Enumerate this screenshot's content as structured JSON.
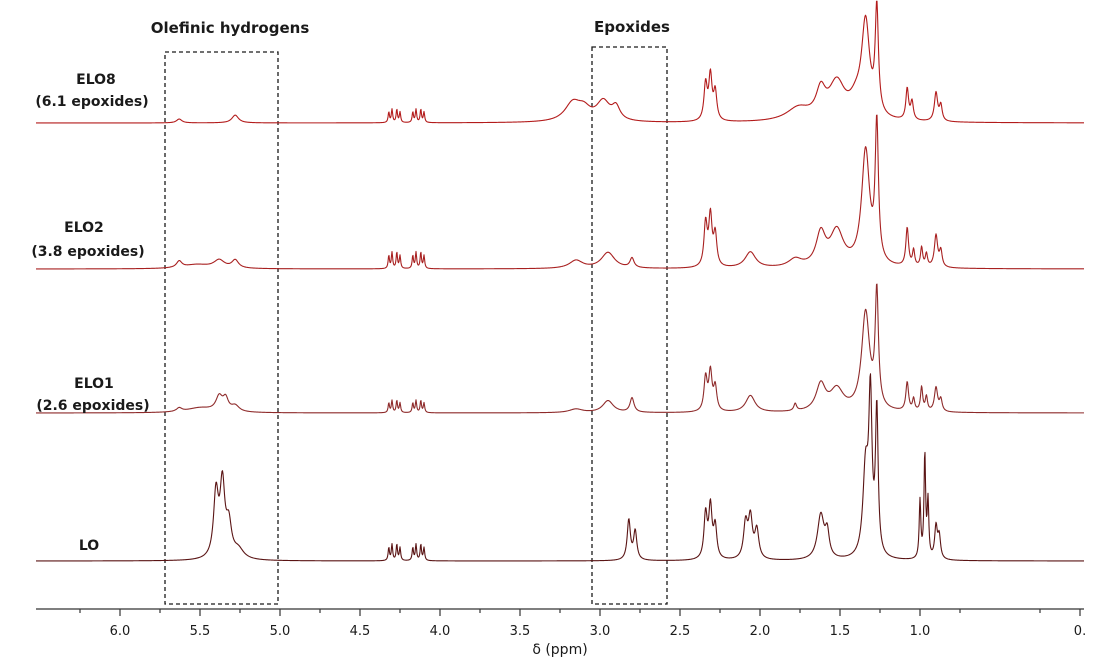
{
  "chart_data": {
    "type": "line",
    "title": "",
    "xlabel": "δ (ppm)",
    "ylabel": "",
    "x_reversed": true,
    "xlim": [
      6.45,
      0.0
    ],
    "x_ticks": [
      {
        "value": 6.0,
        "label": "6.0"
      },
      {
        "value": 5.5,
        "label": "5.5"
      },
      {
        "value": 5.0,
        "label": "5.0"
      },
      {
        "value": 4.5,
        "label": "4.5"
      },
      {
        "value": 4.0,
        "label": "4.0"
      },
      {
        "value": 3.5,
        "label": "3.5"
      },
      {
        "value": 3.0,
        "label": "3.0"
      },
      {
        "value": 2.5,
        "label": "2.5"
      },
      {
        "value": 2.0,
        "label": "2.0"
      },
      {
        "value": 1.5,
        "label": "1.5"
      },
      {
        "value": 1.0,
        "label": "1.0"
      },
      {
        "value": 0.0,
        "label": "0."
      }
    ],
    "grid": false,
    "annotations": [
      {
        "label": "Olefinic hydrogens",
        "x_range": [
          5.75,
          5.1
        ]
      },
      {
        "label": "Epoxides",
        "x_range": [
          3.28,
          2.86
        ]
      }
    ],
    "series": [
      {
        "label_line1": "ELO8",
        "label_line2": "(6.1 epoxides)",
        "color": "#b31b1b",
        "peaks": [
          [
            5.63,
            0.03,
            0.02
          ],
          [
            5.28,
            0.06,
            0.025
          ],
          [
            4.32,
            0.08,
            0.005
          ],
          [
            4.3,
            0.1,
            0.005
          ],
          [
            4.27,
            0.1,
            0.005
          ],
          [
            4.25,
            0.08,
            0.005
          ],
          [
            4.17,
            0.08,
            0.005
          ],
          [
            4.15,
            0.1,
            0.005
          ],
          [
            4.12,
            0.1,
            0.005
          ],
          [
            4.1,
            0.08,
            0.005
          ],
          [
            3.17,
            0.14,
            0.06
          ],
          [
            3.1,
            0.08,
            0.05
          ],
          [
            2.98,
            0.15,
            0.05
          ],
          [
            2.9,
            0.1,
            0.03
          ],
          [
            2.34,
            0.28,
            0.012
          ],
          [
            2.31,
            0.34,
            0.012
          ],
          [
            2.28,
            0.22,
            0.012
          ],
          [
            1.76,
            0.1,
            0.09
          ],
          [
            1.62,
            0.2,
            0.035
          ],
          [
            1.52,
            0.28,
            0.06
          ],
          [
            1.34,
            0.72,
            0.03
          ],
          [
            1.27,
            0.8,
            0.012
          ],
          [
            1.4,
            0.12,
            0.05
          ],
          [
            1.08,
            0.24,
            0.01
          ],
          [
            1.05,
            0.14,
            0.01
          ],
          [
            0.9,
            0.22,
            0.012
          ],
          [
            0.87,
            0.12,
            0.01
          ]
        ]
      },
      {
        "label_line1": "ELO2",
        "label_line2": "(3.8 epoxides)",
        "color": "#a82020",
        "peaks": [
          [
            5.63,
            0.04,
            0.02
          ],
          [
            5.52,
            0.025,
            0.1
          ],
          [
            5.38,
            0.05,
            0.04
          ],
          [
            5.28,
            0.05,
            0.025
          ],
          [
            4.32,
            0.08,
            0.005
          ],
          [
            4.3,
            0.1,
            0.005
          ],
          [
            4.27,
            0.1,
            0.005
          ],
          [
            4.25,
            0.08,
            0.005
          ],
          [
            4.17,
            0.08,
            0.005
          ],
          [
            4.15,
            0.1,
            0.005
          ],
          [
            4.12,
            0.1,
            0.005
          ],
          [
            4.1,
            0.08,
            0.005
          ],
          [
            3.15,
            0.05,
            0.05
          ],
          [
            2.95,
            0.1,
            0.05
          ],
          [
            2.8,
            0.06,
            0.015
          ],
          [
            2.34,
            0.27,
            0.012
          ],
          [
            2.31,
            0.31,
            0.012
          ],
          [
            2.28,
            0.2,
            0.012
          ],
          [
            2.06,
            0.1,
            0.04
          ],
          [
            1.78,
            0.05,
            0.05
          ],
          [
            1.62,
            0.2,
            0.035
          ],
          [
            1.52,
            0.22,
            0.05
          ],
          [
            1.34,
            0.72,
            0.03
          ],
          [
            1.27,
            0.85,
            0.012
          ],
          [
            1.08,
            0.24,
            0.01
          ],
          [
            1.04,
            0.1,
            0.008
          ],
          [
            0.99,
            0.12,
            0.008
          ],
          [
            0.96,
            0.08,
            0.008
          ],
          [
            0.9,
            0.2,
            0.012
          ],
          [
            0.87,
            0.1,
            0.01
          ]
        ]
      },
      {
        "label_line1": "ELO1",
        "label_line2": "(2.6 epoxides)",
        "color": "#8e2a2a",
        "peaks": [
          [
            5.63,
            0.03,
            0.02
          ],
          [
            5.5,
            0.04,
            0.1
          ],
          [
            5.38,
            0.12,
            0.025
          ],
          [
            5.34,
            0.1,
            0.02
          ],
          [
            5.28,
            0.05,
            0.03
          ],
          [
            4.32,
            0.08,
            0.005
          ],
          [
            4.3,
            0.1,
            0.005
          ],
          [
            4.27,
            0.1,
            0.005
          ],
          [
            4.25,
            0.08,
            0.005
          ],
          [
            4.17,
            0.08,
            0.005
          ],
          [
            4.15,
            0.1,
            0.005
          ],
          [
            4.12,
            0.1,
            0.005
          ],
          [
            4.1,
            0.08,
            0.005
          ],
          [
            3.15,
            0.03,
            0.05
          ],
          [
            2.95,
            0.1,
            0.04
          ],
          [
            2.8,
            0.12,
            0.015
          ],
          [
            2.34,
            0.28,
            0.012
          ],
          [
            2.31,
            0.32,
            0.012
          ],
          [
            2.28,
            0.2,
            0.012
          ],
          [
            2.06,
            0.14,
            0.035
          ],
          [
            1.78,
            0.06,
            0.01
          ],
          [
            1.62,
            0.22,
            0.035
          ],
          [
            1.52,
            0.18,
            0.05
          ],
          [
            1.34,
            0.82,
            0.03
          ],
          [
            1.27,
            0.95,
            0.012
          ],
          [
            1.08,
            0.24,
            0.01
          ],
          [
            1.04,
            0.1,
            0.008
          ],
          [
            0.99,
            0.2,
            0.008
          ],
          [
            0.96,
            0.12,
            0.008
          ],
          [
            0.9,
            0.2,
            0.012
          ],
          [
            0.87,
            0.1,
            0.01
          ]
        ]
      },
      {
        "label_line1": "LO",
        "label_line2": "",
        "color": "#5a1414",
        "peaks": [
          [
            5.4,
            0.4,
            0.018
          ],
          [
            5.36,
            0.45,
            0.018
          ],
          [
            5.32,
            0.2,
            0.02
          ],
          [
            5.26,
            0.06,
            0.04
          ],
          [
            4.32,
            0.08,
            0.005
          ],
          [
            4.3,
            0.1,
            0.005
          ],
          [
            4.27,
            0.1,
            0.005
          ],
          [
            4.25,
            0.08,
            0.005
          ],
          [
            4.17,
            0.08,
            0.005
          ],
          [
            4.15,
            0.1,
            0.005
          ],
          [
            4.12,
            0.1,
            0.005
          ],
          [
            4.1,
            0.08,
            0.005
          ],
          [
            2.82,
            0.25,
            0.012
          ],
          [
            2.78,
            0.18,
            0.012
          ],
          [
            2.34,
            0.28,
            0.012
          ],
          [
            2.31,
            0.32,
            0.012
          ],
          [
            2.28,
            0.2,
            0.012
          ],
          [
            2.09,
            0.22,
            0.015
          ],
          [
            2.06,
            0.25,
            0.015
          ],
          [
            2.02,
            0.18,
            0.015
          ],
          [
            1.62,
            0.28,
            0.025
          ],
          [
            1.58,
            0.15,
            0.015
          ],
          [
            1.34,
            0.55,
            0.02
          ],
          [
            1.31,
            0.95,
            0.012
          ],
          [
            1.27,
            0.9,
            0.01
          ],
          [
            1.0,
            0.36,
            0.006
          ],
          [
            0.97,
            0.65,
            0.006
          ],
          [
            0.95,
            0.35,
            0.006
          ],
          [
            0.9,
            0.2,
            0.01
          ],
          [
            0.88,
            0.14,
            0.01
          ]
        ]
      }
    ]
  }
}
